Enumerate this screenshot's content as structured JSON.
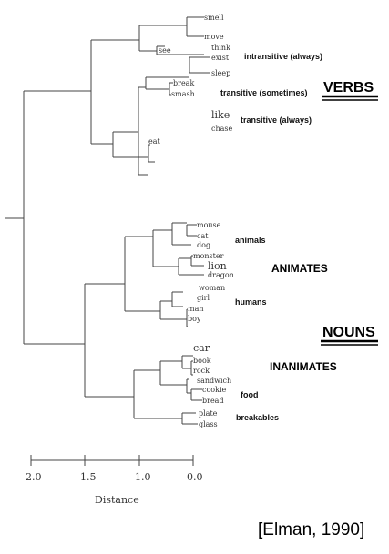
{
  "leaves": {
    "smell": "smell",
    "move": "move",
    "see": "see",
    "think": "think",
    "exist": "exist",
    "sleep": "sleep",
    "break": "break",
    "smash": "smash",
    "like": "like",
    "chase": "chase",
    "eat": "eat",
    "mouse": "mouse",
    "cat": "cat",
    "dog": "dog",
    "monster": "monster",
    "lion": "lion",
    "dragon": "dragon",
    "woman": "woman",
    "girl": "girl",
    "man": "man",
    "boy": "boy",
    "car": "car",
    "book": "book",
    "rock": "rock",
    "sandwich": "sandwich",
    "cookie": "cookie",
    "bread": "bread",
    "plate": "plate",
    "glass": "glass"
  },
  "group_labels": {
    "intransitive": "intransitive (always)",
    "transitive_sometimes": "transitive (sometimes)",
    "transitive_always": "transitive (always)",
    "animals": "animals",
    "humans": "humans",
    "food": "food",
    "breakables": "breakables"
  },
  "category_labels": {
    "verbs": "VERBS",
    "animates": "ANIMATES",
    "nouns": "NOUNS",
    "inanimates": "INANIMATES"
  },
  "axis": {
    "ticks": [
      "2.0",
      "1.5",
      "1.0",
      "0.0"
    ],
    "label": "Distance"
  },
  "citation": "[Elman, 1990]"
}
